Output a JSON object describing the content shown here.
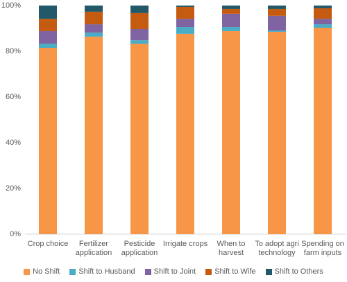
{
  "chart_data": {
    "type": "stacked_bar",
    "categories": [
      "Crop choice",
      "Fertilizer\napplication",
      "Pesticide\napplication",
      "Irrigate crops",
      "When to\nharvest",
      "To adopt agri\ntechnology",
      "Spending on\nfarm inputs"
    ],
    "series": [
      {
        "name": "No Shift",
        "color": "#f79646",
        "values": [
          81.5,
          86.4,
          83.3,
          87.6,
          88.8,
          88.5,
          90.3
        ]
      },
      {
        "name": "Shift to Husband",
        "color": "#4bacc6",
        "values": [
          1.8,
          1.8,
          1.5,
          3.0,
          1.8,
          0.6,
          1.5
        ]
      },
      {
        "name": "Shift to Joint",
        "color": "#8064a2",
        "values": [
          5.5,
          3.6,
          4.9,
          3.6,
          5.8,
          6.4,
          2.4
        ]
      },
      {
        "name": "Shift to Wife",
        "color": "#c55a11",
        "values": [
          5.4,
          5.5,
          7.0,
          5.2,
          2.1,
          3.0,
          4.6
        ]
      },
      {
        "name": "Shift to Others",
        "color": "#215968",
        "values": [
          5.8,
          2.7,
          3.3,
          0.6,
          1.5,
          1.5,
          1.2
        ]
      }
    ],
    "ylim": [
      0,
      100
    ],
    "yticks": [
      {
        "value": 0,
        "label": "0%"
      },
      {
        "value": 20,
        "label": "20%"
      },
      {
        "value": 40,
        "label": "40%"
      },
      {
        "value": 60,
        "label": "60%"
      },
      {
        "value": 80,
        "label": "80%"
      },
      {
        "value": 100,
        "label": "100%"
      }
    ],
    "grid": false,
    "legend": "bottom"
  }
}
